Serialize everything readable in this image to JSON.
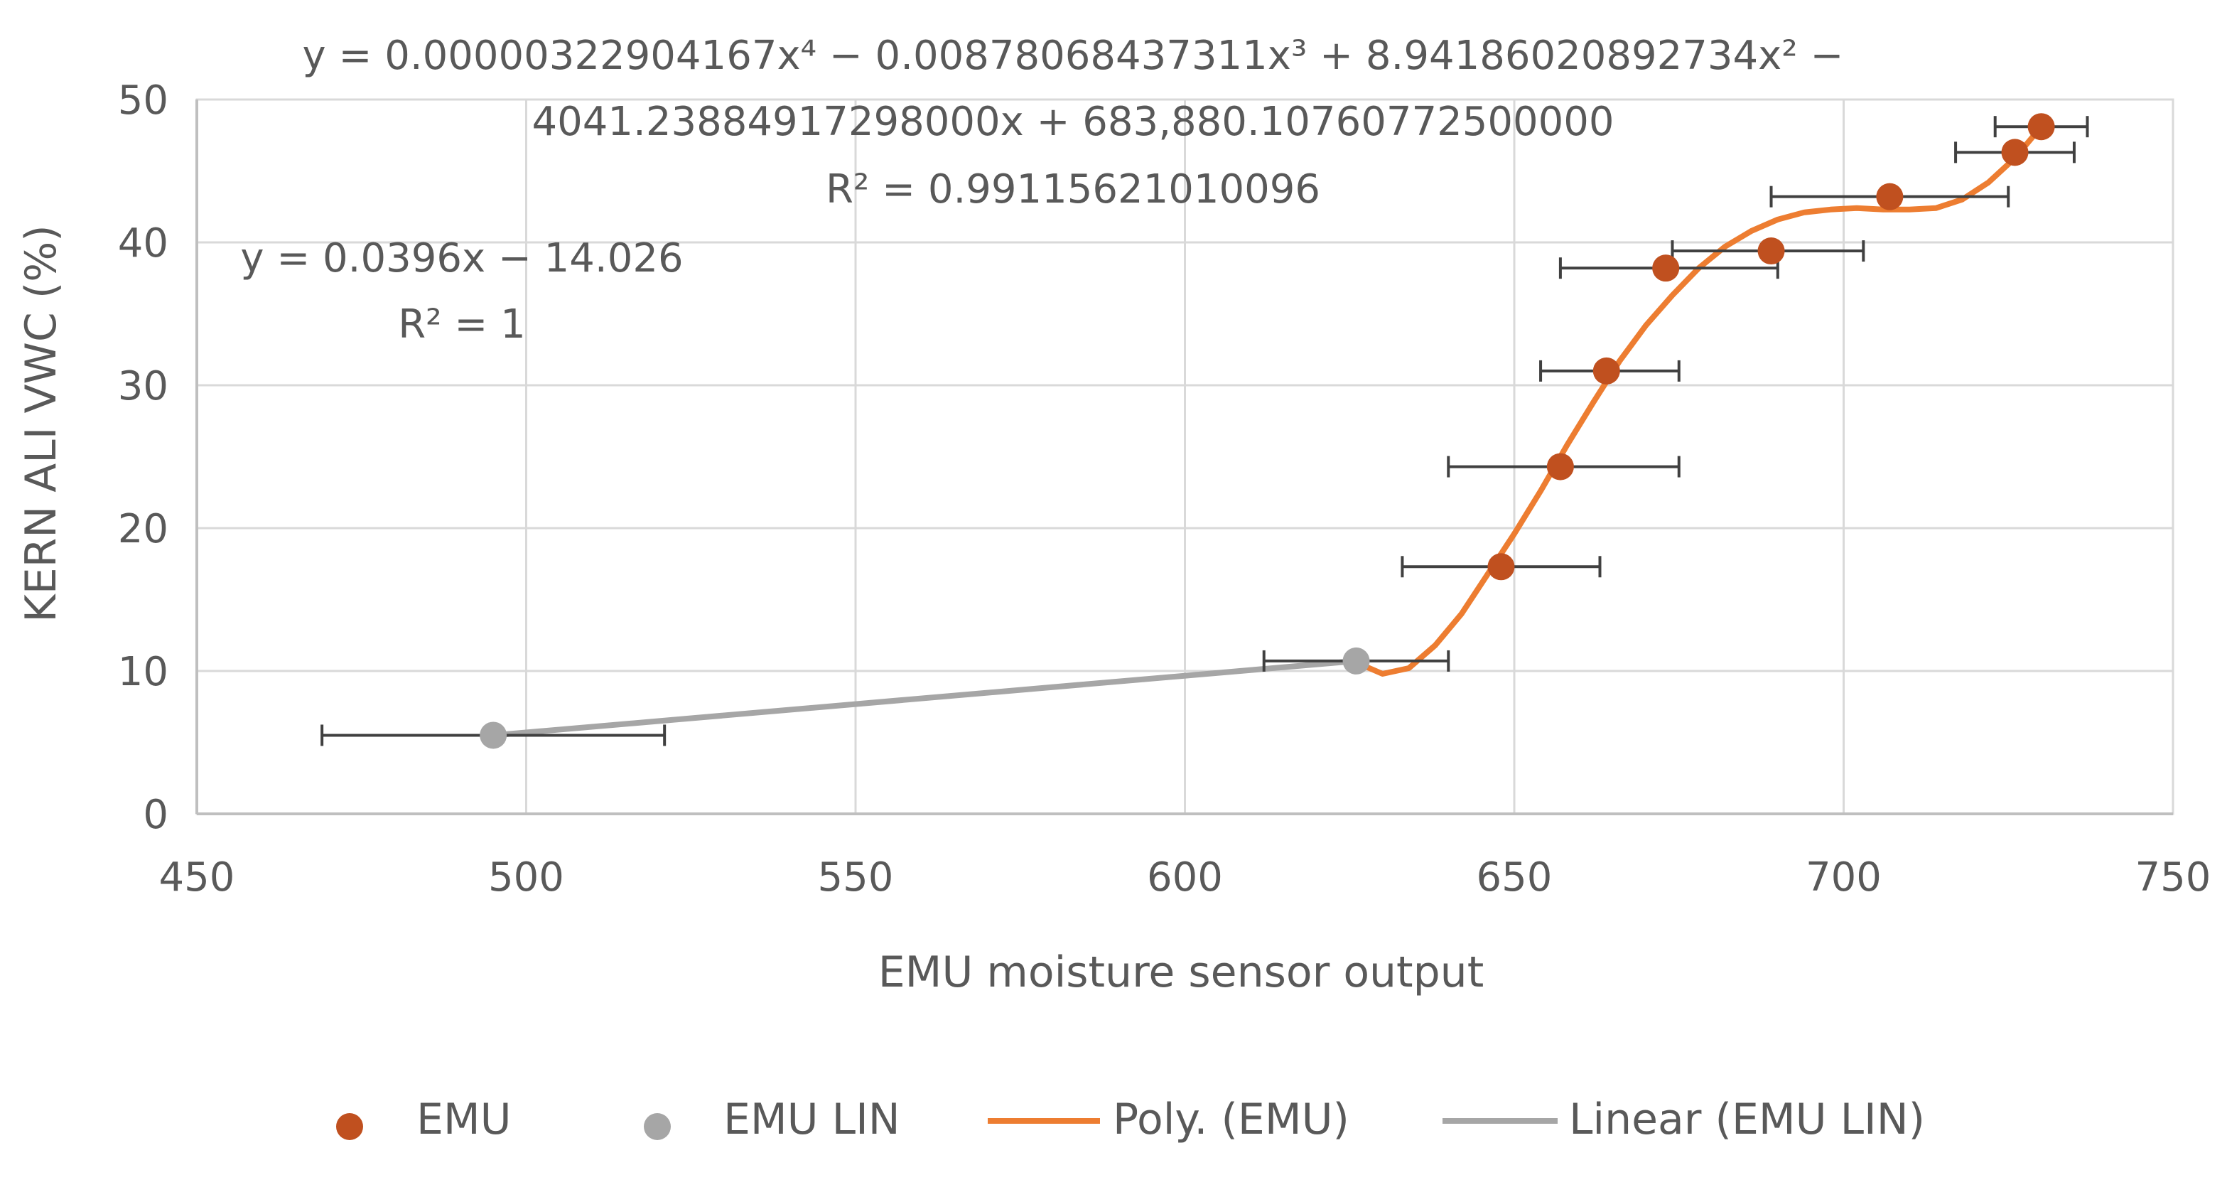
{
  "chart_data": {
    "type": "scatter",
    "title": "",
    "xlabel": "EMU moisture sensor output",
    "ylabel": "KERN ALI VWC (%)",
    "xlim": [
      450,
      750
    ],
    "ylim": [
      0,
      50
    ],
    "x_ticks": [
      450,
      500,
      550,
      600,
      650,
      700,
      750
    ],
    "y_ticks": [
      0,
      10,
      20,
      30,
      40,
      50
    ],
    "grid": true,
    "legend_position": "bottom",
    "series": [
      {
        "name": "EMU",
        "kind": "scatter",
        "color": "#c0501f",
        "points": [
          {
            "x": 648,
            "y": 17.3,
            "xerr_low": 633,
            "xerr_high": 663
          },
          {
            "x": 657,
            "y": 24.3,
            "xerr_low": 640,
            "xerr_high": 675
          },
          {
            "x": 664,
            "y": 31.0,
            "xerr_low": 654,
            "xerr_high": 675
          },
          {
            "x": 673,
            "y": 38.2,
            "xerr_low": 657,
            "xerr_high": 690
          },
          {
            "x": 689,
            "y": 39.4,
            "xerr_low": 674,
            "xerr_high": 703
          },
          {
            "x": 707,
            "y": 43.2,
            "xerr_low": 689,
            "xerr_high": 725
          },
          {
            "x": 726,
            "y": 46.3,
            "xerr_low": 717,
            "xerr_high": 735
          },
          {
            "x": 730,
            "y": 48.1,
            "xerr_low": 723,
            "xerr_high": 737
          }
        ]
      },
      {
        "name": "EMU LIN",
        "kind": "scatter",
        "color": "#a6a6a6",
        "points": [
          {
            "x": 495,
            "y": 5.5,
            "xerr_low": 469,
            "xerr_high": 521
          },
          {
            "x": 626,
            "y": 10.7,
            "xerr_low": 612,
            "xerr_high": 640
          }
        ]
      },
      {
        "name": "Poly. (EMU)",
        "kind": "trendline",
        "color": "#ed7d31",
        "points": [
          {
            "x": 627,
            "y": 10.4
          },
          {
            "x": 630,
            "y": 9.8
          },
          {
            "x": 634,
            "y": 10.2
          },
          {
            "x": 638,
            "y": 11.8
          },
          {
            "x": 642,
            "y": 14.0
          },
          {
            "x": 646,
            "y": 16.8
          },
          {
            "x": 650,
            "y": 19.6
          },
          {
            "x": 654,
            "y": 22.6
          },
          {
            "x": 658,
            "y": 25.8
          },
          {
            "x": 662,
            "y": 28.8
          },
          {
            "x": 666,
            "y": 31.7
          },
          {
            "x": 670,
            "y": 34.2
          },
          {
            "x": 674,
            "y": 36.3
          },
          {
            "x": 678,
            "y": 38.2
          },
          {
            "x": 682,
            "y": 39.7
          },
          {
            "x": 686,
            "y": 40.8
          },
          {
            "x": 690,
            "y": 41.6
          },
          {
            "x": 694,
            "y": 42.1
          },
          {
            "x": 698,
            "y": 42.3
          },
          {
            "x": 702,
            "y": 42.4
          },
          {
            "x": 706,
            "y": 42.3
          },
          {
            "x": 710,
            "y": 42.3
          },
          {
            "x": 714,
            "y": 42.4
          },
          {
            "x": 718,
            "y": 43.0
          },
          {
            "x": 722,
            "y": 44.2
          },
          {
            "x": 726,
            "y": 45.9
          },
          {
            "x": 730,
            "y": 48.1
          }
        ]
      },
      {
        "name": "Linear (EMU LIN)",
        "kind": "trendline",
        "color": "#a6a6a6",
        "points": [
          {
            "x": 495,
            "y": 5.5
          },
          {
            "x": 626,
            "y": 10.7
          }
        ]
      }
    ],
    "annotations": [
      {
        "id": "poly-eq-line1",
        "text": "y = 0.00000322904167x⁴ − 0.00878068437311x³ + 8.94186020892734x² −"
      },
      {
        "id": "poly-eq-line2",
        "text": "4041.23884917298000x + 683,880.10760772500000"
      },
      {
        "id": "poly-r2",
        "text": "R² = 0.99115621010096"
      },
      {
        "id": "lin-eq",
        "text": "y = 0.0396x − 14.026"
      },
      {
        "id": "lin-r2",
        "text": "R² = 1"
      }
    ]
  }
}
